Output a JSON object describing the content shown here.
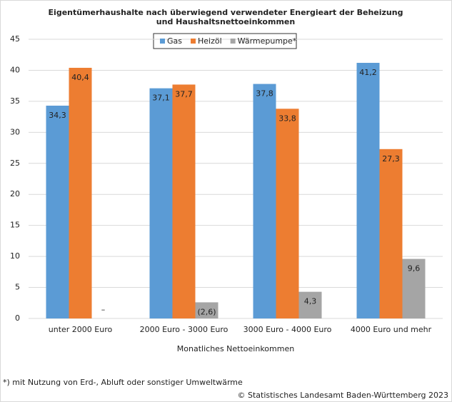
{
  "chart_data": {
    "type": "bar",
    "title": [
      "Eigentümerhaushalte nach überwiegend verwendeter Energieart der Beheizung",
      "und Haushaltsnettoeinkommen"
    ],
    "x_label": "Monatliches Nettoeinkommen",
    "categories": [
      "unter 2000 Euro",
      "2000 Euro  - 3000 Euro",
      "3000 Euro - 4000 Euro",
      "4000 Euro und mehr"
    ],
    "series": [
      {
        "name": "Gas",
        "color": "#5b9bd5",
        "values": [
          34.3,
          37.1,
          37.8,
          41.2
        ],
        "value_labels": [
          "34,3",
          "37,1",
          "37,8",
          "41,2"
        ]
      },
      {
        "name": "Heizöl",
        "color": "#ed7d31",
        "values": [
          40.4,
          37.7,
          33.8,
          27.3
        ],
        "value_labels": [
          "40,4",
          "37,7",
          "33,8",
          "27,3"
        ]
      },
      {
        "name": "Wärmepumpe*",
        "color": "#a5a5a5",
        "values": [
          null,
          2.6,
          4.3,
          9.6
        ],
        "value_labels": [
          "–",
          "(2,6)",
          "4,3",
          "9,6"
        ]
      }
    ],
    "ylim": [
      0,
      45
    ],
    "yticks": [
      0,
      5,
      10,
      15,
      20,
      25,
      30,
      35,
      40,
      45
    ],
    "grid": true,
    "legend": "top",
    "footnote": "*) mit Nutzung von Erd-, Abluft oder sonstiger Umweltwärme",
    "source": "© Statistisches Landesamt Baden-Württemberg 2023"
  }
}
